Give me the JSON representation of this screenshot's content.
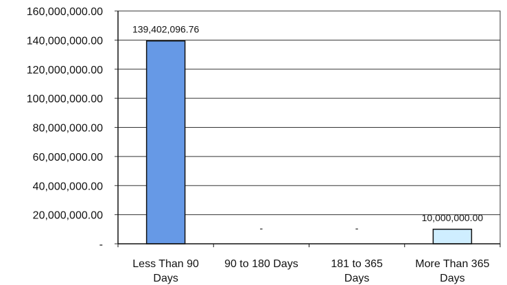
{
  "chart_data": {
    "type": "bar",
    "categories": [
      [
        "Less Than 90",
        "Days"
      ],
      [
        "90 to 180 Days"
      ],
      [
        "181 to 365",
        "Days"
      ],
      [
        "More Than 365",
        "Days"
      ]
    ],
    "values": [
      139402096.76,
      0,
      0,
      10000000
    ],
    "data_labels": [
      "139,402,096.76",
      "-",
      "-",
      "10,000,000.00"
    ],
    "bar_colors": [
      "#6699e6",
      "#6699e6",
      "#6699e6",
      "#cfeeff"
    ],
    "bar_border_color": "#111111",
    "y_tick_values": [
      0,
      20000000,
      40000000,
      60000000,
      80000000,
      100000000,
      120000000,
      140000000,
      160000000
    ],
    "y_tick_labels": [
      "-",
      "20,000,000.00",
      "40,000,000.00",
      "60,000,000.00",
      "80,000,000.00",
      "100,000,000.00",
      "120,000,000.00",
      "140,000,000.00",
      "160,000,000.00"
    ],
    "ylim": [
      0,
      160000000
    ],
    "grid": true,
    "title": "",
    "xlabel": "",
    "ylabel": ""
  }
}
